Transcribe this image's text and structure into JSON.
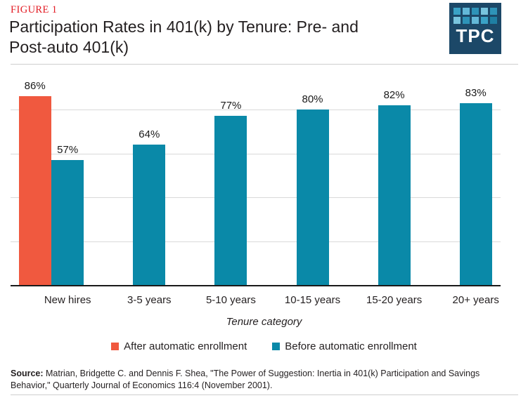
{
  "header": {
    "figure_label": "FIGURE 1",
    "title": "Participation Rates in 401(k) by Tenure: Pre- and Post-auto 401(k)",
    "title_lines": [
      "Participation Rates in 401(k) by Tenure: Pre- and",
      "Post-auto 401(k)"
    ],
    "logo_text": "TPC"
  },
  "colors": {
    "after_series": "#F0593F",
    "before_series": "#0A89A8",
    "figure_label_red": "#E31B23",
    "logo_navy": "#1C4868",
    "gridline": "#D9D9D9",
    "axis": "#1A1A1A",
    "logo_squares": [
      "#3AA2C6",
      "#63B8D8",
      "#2E93B8",
      "#78C4DE",
      "#2E93B8",
      "#78C4DE",
      "#2E93B8",
      "#63B8D8",
      "#3AA2C6",
      "#1F7FA3"
    ]
  },
  "chart_data": {
    "type": "bar",
    "title": "Participation Rates in 401(k) by Tenure: Pre- and Post-auto 401(k)",
    "categories": [
      "New hires",
      "3-5 years",
      "5-10 years",
      "10-15 years",
      "15-20 years",
      "20+ years"
    ],
    "series": [
      {
        "name": "After automatic enrollment",
        "color": "#F0593F",
        "values": [
          86,
          null,
          null,
          null,
          null,
          null
        ]
      },
      {
        "name": "Before automatic enrollment",
        "color": "#0A89A8",
        "values": [
          57,
          64,
          77,
          80,
          82,
          83
        ]
      }
    ],
    "value_suffix": "%",
    "value_labels": [
      "86%",
      "57%",
      "64%",
      "77%",
      "80%",
      "82%",
      "83%"
    ],
    "xlabel": "Tenure category",
    "ylabel": "",
    "ylim": [
      0,
      100
    ],
    "gridline_values": [
      20,
      40,
      60,
      80
    ],
    "grid": true,
    "y_axis_labels_visible": false,
    "legend_position": "bottom"
  },
  "legend": {
    "items": [
      {
        "label": "After automatic enrollment",
        "color": "#F0593F"
      },
      {
        "label": "Before automatic enrollment",
        "color": "#0A89A8"
      }
    ]
  },
  "source": {
    "label": "Source:",
    "text": " Matrian, Bridgette C. and Dennis F. Shea, \"The Power of Suggestion: Inertia in 401(k) Participation and Savings Behavior,\" Quarterly Journal of Economics 116:4 (November 2001)."
  }
}
